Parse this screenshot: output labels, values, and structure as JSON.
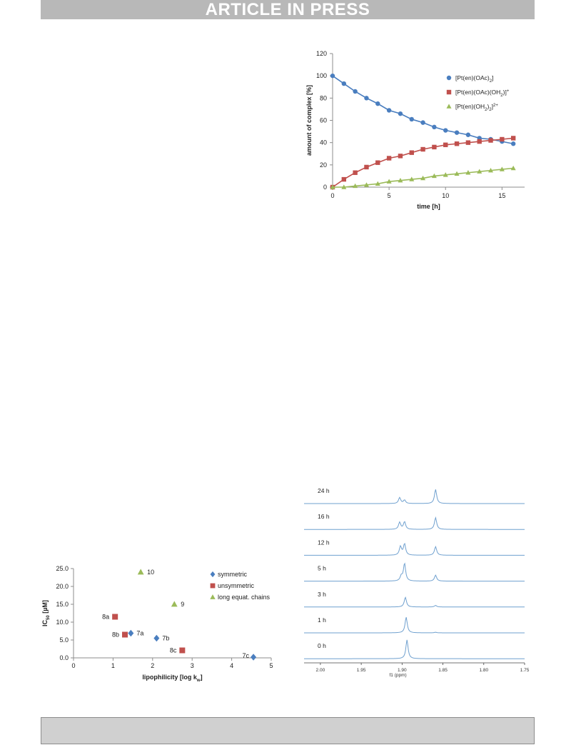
{
  "header": {
    "banner_text": "ARTICLE IN PRESS"
  },
  "chart_data": [
    {
      "type": "line",
      "xlabel": "time [h]",
      "ylabel": "amount of complex [%]",
      "xlim": [
        0,
        17
      ],
      "ylim": [
        0,
        120
      ],
      "x_ticks": [
        "0",
        "5",
        "10",
        "15"
      ],
      "y_ticks": [
        "0",
        "20",
        "40",
        "60",
        "80",
        "100",
        "120"
      ],
      "grid": false,
      "legend_position": "right",
      "x": [
        0,
        1,
        2,
        3,
        4,
        5,
        6,
        7,
        8,
        9,
        10,
        11,
        12,
        13,
        14,
        15,
        16
      ],
      "series": [
        {
          "name": "[Pt(en)(OAc)2]",
          "legend_main": "[Pt(en)(OAc)",
          "legend_sub": "2",
          "legend_tail": "]",
          "legend_sup": "",
          "marker": "circle",
          "color": "#4a7ebf",
          "values": [
            100,
            93,
            86,
            80,
            75,
            69,
            66,
            61,
            58,
            54,
            51,
            49,
            47,
            44,
            43,
            41,
            39
          ]
        },
        {
          "name": "[Pt(en)(OAc)(OH2)]+",
          "legend_main": "[Pt(en)(OAc)(OH",
          "legend_sub": "2",
          "legend_tail": ")]",
          "legend_sup": "+",
          "marker": "square",
          "color": "#c0504d",
          "values": [
            0,
            7,
            13,
            18,
            22,
            26,
            28,
            31,
            34,
            36,
            38,
            39,
            40,
            41,
            42,
            43,
            44
          ]
        },
        {
          "name": "[Pt(en)(OH2)2]2+",
          "legend_main": "[Pt(en)(OH",
          "legend_sub": "2",
          "legend_tail": ")",
          "legend_sub2": "2",
          "legend_tail2": "]",
          "legend_sup": "2+",
          "marker": "triangle",
          "color": "#9bbb59",
          "values": [
            0,
            0,
            1,
            2,
            3,
            5,
            6,
            7,
            8,
            10,
            11,
            12,
            13,
            14,
            15,
            16,
            17
          ]
        }
      ]
    },
    {
      "type": "scatter",
      "xlabel_main": "lipophilicity [log k",
      "xlabel_sub": "w",
      "xlabel_tail": "]",
      "ylabel_main": "IC",
      "ylabel_sub": "50",
      "ylabel_tail": " [µM]",
      "xlim": [
        0,
        5
      ],
      "ylim": [
        0,
        25
      ],
      "x_ticks": [
        "0",
        "1",
        "2",
        "3",
        "4",
        "5"
      ],
      "y_ticks": [
        "0.0",
        "5.0",
        "10.0",
        "15.0",
        "20.0",
        "25.0"
      ],
      "grid": false,
      "legend_position": "right",
      "series": [
        {
          "name": "symmetric",
          "marker": "diamond",
          "color": "#4a7ebf",
          "points": [
            {
              "x": 1.45,
              "y": 6.9,
              "label": "7a"
            },
            {
              "x": 2.1,
              "y": 5.5,
              "label": "7b"
            },
            {
              "x": 4.55,
              "y": 0.2,
              "label": "7c"
            }
          ]
        },
        {
          "name": "unsymmetric",
          "marker": "square",
          "color": "#c0504d",
          "points": [
            {
              "x": 1.05,
              "y": 11.5,
              "label": "8a"
            },
            {
              "x": 1.3,
              "y": 6.5,
              "label": "8b"
            },
            {
              "x": 2.75,
              "y": 2.1,
              "label": "8c"
            }
          ]
        },
        {
          "name": "long equat. chains",
          "marker": "triangle",
          "color": "#9bbb59",
          "points": [
            {
              "x": 1.7,
              "y": 24.0,
              "label": "10"
            },
            {
              "x": 2.55,
              "y": 15.0,
              "label": "9"
            }
          ]
        }
      ]
    },
    {
      "type": "line",
      "subtype": "nmr-stacked-spectra",
      "xlabel": "f1 (ppm)",
      "x_reversed": true,
      "xlim": [
        1.75,
        2.02
      ],
      "x_ticks": [
        "2.00",
        "1.95",
        "1.90",
        "1.85",
        "1.80",
        "1.75"
      ],
      "color": "#6fa0cf",
      "traces": [
        {
          "label": "24 h",
          "peaks": [
            {
              "ppm": 1.903,
              "h": 0.38
            },
            {
              "ppm": 1.897,
              "h": 0.22
            },
            {
              "ppm": 1.859,
              "h": 0.9
            }
          ]
        },
        {
          "label": "16 h",
          "peaks": [
            {
              "ppm": 1.903,
              "h": 0.45
            },
            {
              "ppm": 1.897,
              "h": 0.48
            },
            {
              "ppm": 1.859,
              "h": 0.75
            }
          ]
        },
        {
          "label": "12 h",
          "peaks": [
            {
              "ppm": 1.902,
              "h": 0.55
            },
            {
              "ppm": 1.897,
              "h": 0.72
            },
            {
              "ppm": 1.859,
              "h": 0.55
            }
          ]
        },
        {
          "label": "5 h",
          "peaks": [
            {
              "ppm": 1.901,
              "h": 0.3
            },
            {
              "ppm": 1.897,
              "h": 1.12
            },
            {
              "ppm": 1.859,
              "h": 0.38
            }
          ]
        },
        {
          "label": "3 h",
          "peaks": [
            {
              "ppm": 1.896,
              "h": 0.62
            },
            {
              "ppm": 1.859,
              "h": 0.1
            }
          ]
        },
        {
          "label": "1 h",
          "peaks": [
            {
              "ppm": 1.895,
              "h": 1.0
            },
            {
              "ppm": 1.859,
              "h": 0.04
            }
          ]
        },
        {
          "label": "0 h",
          "peaks": [
            {
              "ppm": 1.894,
              "h": 1.2
            }
          ]
        }
      ]
    }
  ]
}
